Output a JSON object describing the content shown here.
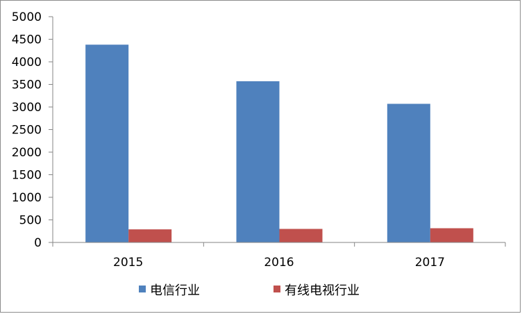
{
  "chart_data": {
    "type": "bar",
    "categories": [
      "2015",
      "2016",
      "2017"
    ],
    "series": [
      {
        "name": "电信行业",
        "values": [
          4380,
          3570,
          3070
        ],
        "color": "#4f81bd"
      },
      {
        "name": "有线电视行业",
        "values": [
          290,
          300,
          315
        ],
        "color": "#c0504d"
      }
    ],
    "ylim": [
      0,
      5000
    ],
    "yticks": [
      0,
      500,
      1000,
      1500,
      2000,
      2500,
      3000,
      3500,
      4000,
      4500,
      5000
    ],
    "grid": false,
    "legend_position": "bottom"
  }
}
